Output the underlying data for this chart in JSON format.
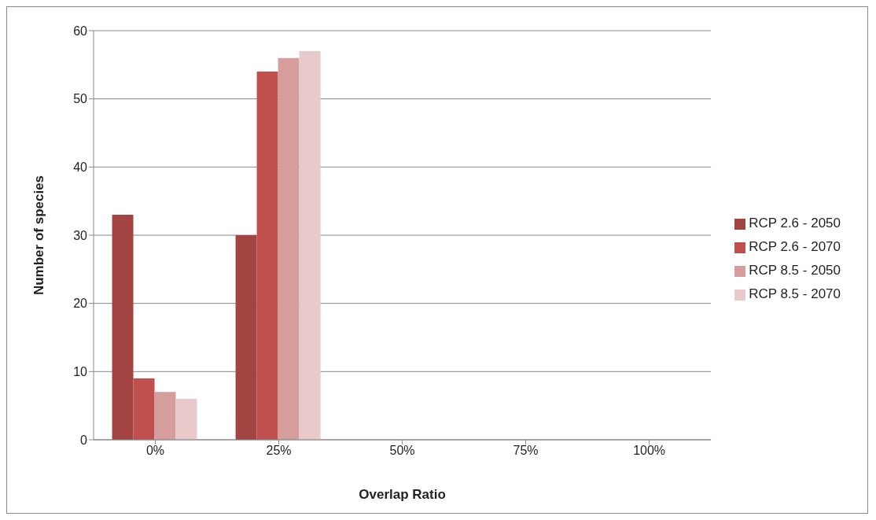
{
  "chart_data": {
    "type": "bar",
    "xlabel": "Overlap Ratio",
    "ylabel": "Number of species",
    "categories": [
      "0%",
      "25%",
      "50%",
      "75%",
      "100%"
    ],
    "series": [
      {
        "name": "RCP 2.6 - 2050",
        "color": "#a44442",
        "values": [
          33,
          30,
          0,
          0,
          0
        ]
      },
      {
        "name": "RCP 2.6 - 2070",
        "color": "#c0504d",
        "values": [
          9,
          54,
          0,
          0,
          0
        ]
      },
      {
        "name": "RCP 8.5 - 2050",
        "color": "#d59e9d",
        "values": [
          7,
          56,
          0,
          0,
          0
        ]
      },
      {
        "name": "RCP 8.5 - 2070",
        "color": "#e8caca",
        "values": [
          6,
          57,
          0,
          0,
          0
        ]
      }
    ],
    "ylim": [
      0,
      60
    ],
    "yticks": [
      0,
      10,
      20,
      30,
      40,
      50,
      60
    ],
    "grid": "y",
    "legend": "right"
  }
}
